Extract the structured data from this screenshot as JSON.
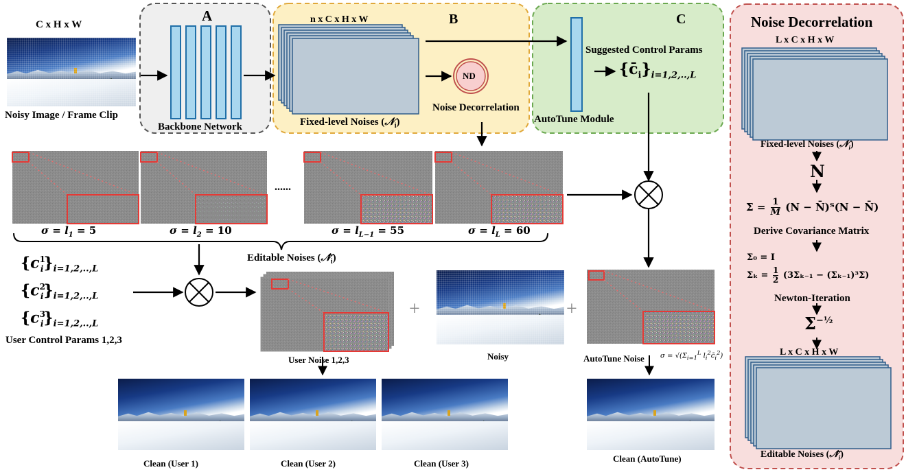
{
  "input": {
    "dims": "C x H x W",
    "caption": "Noisy Image / Frame Clip"
  },
  "panel_a": {
    "letter": "A",
    "caption": "Backbone Network"
  },
  "panel_b": {
    "letter": "B",
    "dims": "n x  C x H x W",
    "caption_main": "Fixed-level Noises (",
    "caption_sym": "𝒩",
    "caption_sub": "i",
    "caption_end": ")",
    "nd_label": "ND",
    "nd_caption": "Noise Decorrelation"
  },
  "panel_c": {
    "letter": "C",
    "params_title": "Suggested Control Params",
    "params_expr": "{c̄",
    "params_sub": "i",
    "params_range": "}",
    "params_range_sub": "i=1,2,..,L",
    "caption": "AutoTune Module"
  },
  "levels": [
    {
      "lhs": "σ = l",
      "sub": "1",
      "val": " = 5"
    },
    {
      "lhs": "σ = l",
      "sub": "2",
      "val": " = 10"
    },
    {
      "lhs": "σ = l",
      "sub": "L−1",
      "val": " = 55"
    },
    {
      "lhs": "σ = l",
      "sub": "L",
      "val": " = 60"
    }
  ],
  "ellipsis": "......",
  "editable_caption": "Editable Noises (",
  "editable_sym": "𝒩̃",
  "editable_sub": "i",
  "editable_end": ")",
  "user_params": [
    {
      "sup": "1",
      "range": "i=1,2,..,L"
    },
    {
      "sup": "2",
      "range": "i=1,2,..,L"
    },
    {
      "sup": "3",
      "range": "i=1,2,..,L"
    }
  ],
  "user_params_caption": "User Control Params 1,2,3",
  "user_noise_caption": "User Noise 1,2,3",
  "plus": "+",
  "noisy_caption": "Noisy",
  "autotune_noise_caption": "AutoTune Noise",
  "autotune_sigma": "σ =",
  "clean_captions": [
    "Clean (User 1)",
    "Clean (User 2)",
    "Clean (User 3)",
    "Clean (AutoTune)"
  ],
  "nd_panel": {
    "title": "Noise Decorrelation",
    "dims_top": "L x  C x H x W",
    "fixed_caption": "Fixed-level Noises (",
    "N": "N",
    "sigma_eq": "Σ =",
    "sigma_frac_num": "1",
    "sigma_frac_den": "M",
    "sigma_body": "(N − N̄)ᵀ(N − N̄)",
    "cov_caption": "Derive Covariance Matrix",
    "sigma0": "Σ₀ = I",
    "sigmak_lhs": "Σₖ =",
    "sigmak_body": "(3Σₖ₋₁ − (Σₖ₋₁)³Σ)",
    "half_num": "1",
    "half_den": "2",
    "newton_caption": "Newton-Iteration",
    "inv_sqrt": "Σ",
    "inv_sqrt_exp": "−½",
    "dims_bottom": "L x  C x H x W",
    "editable_caption": "Editable Noises ("
  },
  "colors": {
    "panel_a_fill": "#efefef",
    "panel_a_border": "#555555",
    "panel_b_fill": "#fdf0c4",
    "panel_b_border": "#e0a83a",
    "panel_c_fill": "#d7ecc9",
    "panel_c_border": "#6aa84f",
    "nd_fill": "#f8dedd",
    "nd_border": "#c0504d",
    "bar_fill": "#a9d7ef",
    "bar_border": "#1f6fa8",
    "stack_fill": "#bccad6",
    "stack_border": "#2f5c8a",
    "noise_gray": "#8a8a8a",
    "red": "#e53935"
  }
}
